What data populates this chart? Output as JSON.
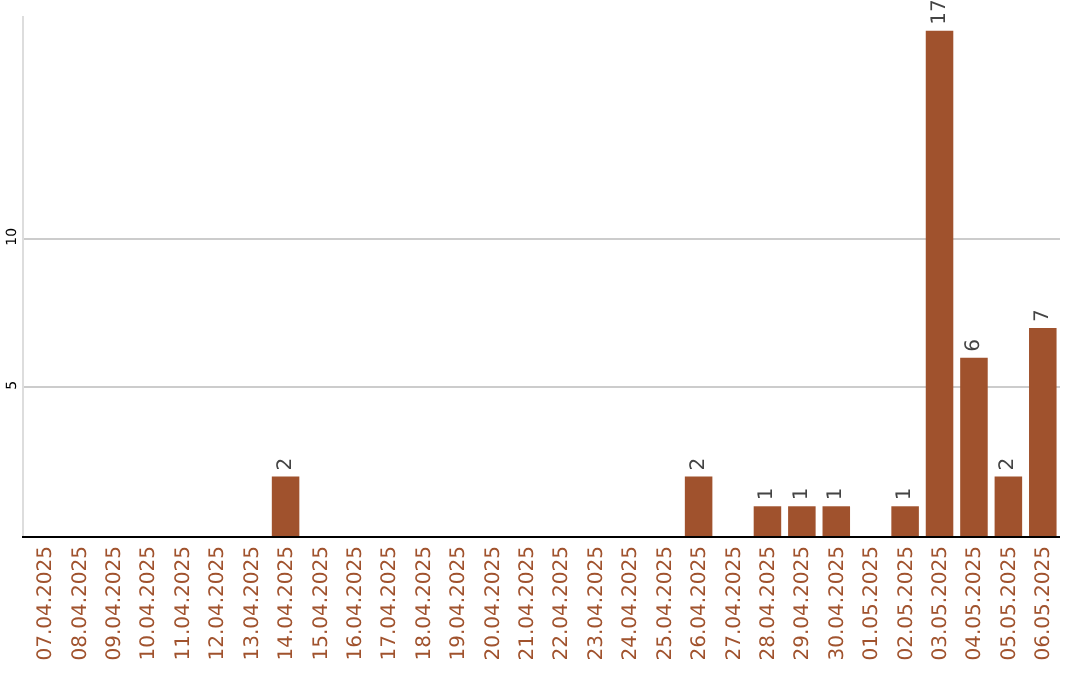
{
  "chart_data": {
    "type": "bar",
    "categories": [
      "07.04.2025",
      "08.04.2025",
      "09.04.2025",
      "10.04.2025",
      "11.04.2025",
      "12.04.2025",
      "13.04.2025",
      "14.04.2025",
      "15.04.2025",
      "16.04.2025",
      "17.04.2025",
      "18.04.2025",
      "19.04.2025",
      "20.04.2025",
      "21.04.2025",
      "22.04.2025",
      "23.04.2025",
      "24.04.2025",
      "25.04.2025",
      "26.04.2025",
      "27.04.2025",
      "28.04.2025",
      "29.04.2025",
      "30.04.2025",
      "01.05.2025",
      "02.05.2025",
      "03.05.2025",
      "04.05.2025",
      "05.05.2025",
      "06.05.2025"
    ],
    "values": [
      0,
      0,
      0,
      0,
      0,
      0,
      0,
      2,
      0,
      0,
      0,
      0,
      0,
      0,
      0,
      0,
      0,
      0,
      0,
      2,
      0,
      1,
      1,
      1,
      0,
      1,
      17,
      6,
      2,
      7
    ],
    "value_labels": [
      null,
      null,
      null,
      null,
      null,
      null,
      null,
      "2",
      null,
      null,
      null,
      null,
      null,
      null,
      null,
      null,
      null,
      null,
      null,
      "2",
      null,
      "1",
      "1",
      "1",
      null,
      "1",
      "17",
      "6",
      "2",
      "7"
    ],
    "color": "#a0522d",
    "ylim": [
      0,
      17.5
    ],
    "yticks": [
      5,
      10
    ],
    "grid": "y",
    "legend": false
  }
}
